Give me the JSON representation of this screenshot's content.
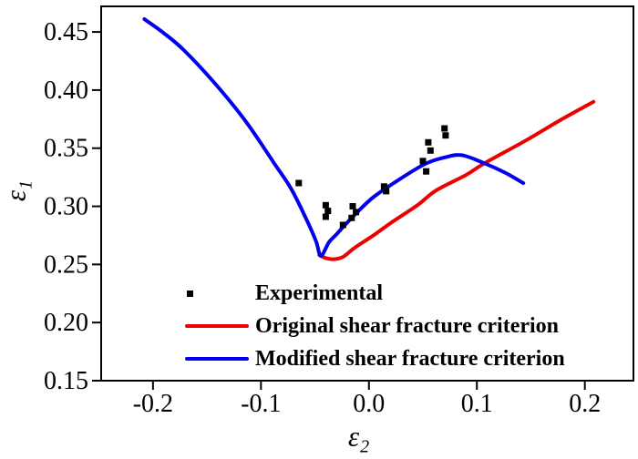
{
  "figure": {
    "background": "#ffffff",
    "frame_color": "#000000"
  },
  "chart_data": {
    "type": "line+scatter",
    "title": "",
    "xlabel_base": "ε",
    "xlabel_sub": "2",
    "ylabel_base": "ε",
    "ylabel_sub": "1",
    "xlim": [
      -0.248,
      0.245
    ],
    "ylim": [
      0.15,
      0.472
    ],
    "grid": false,
    "legend_position": "inside-bottom-right",
    "x_ticks": {
      "values": [
        -0.2,
        -0.1,
        0.0,
        0.1,
        0.2
      ],
      "labels": [
        "-0.2",
        "-0.1",
        "0.0",
        "0.1",
        "0.2"
      ]
    },
    "y_ticks": {
      "values": [
        0.15,
        0.2,
        0.25,
        0.3,
        0.35,
        0.4,
        0.45
      ],
      "labels": [
        "0.15",
        "0.20",
        "0.25",
        "0.30",
        "0.35",
        "0.40",
        "0.45"
      ]
    },
    "series": [
      {
        "name": "Experimental",
        "type": "scatter",
        "marker": "square",
        "color": "#000000",
        "points": [
          [
            -0.065,
            0.32
          ],
          [
            -0.04,
            0.301
          ],
          [
            -0.038,
            0.296
          ],
          [
            -0.04,
            0.291
          ],
          [
            -0.024,
            0.284
          ],
          [
            -0.015,
            0.3
          ],
          [
            -0.012,
            0.295
          ],
          [
            -0.016,
            0.29
          ],
          [
            0.014,
            0.317
          ],
          [
            0.016,
            0.313
          ],
          [
            0.05,
            0.339
          ],
          [
            0.053,
            0.33
          ],
          [
            0.055,
            0.355
          ],
          [
            0.057,
            0.348
          ],
          [
            0.07,
            0.367
          ],
          [
            0.071,
            0.361
          ]
        ]
      },
      {
        "name": "Original shear fracture criterion",
        "type": "line",
        "color": "#ee0000",
        "points": [
          [
            -0.046,
            0.258
          ],
          [
            -0.04,
            0.2555
          ],
          [
            -0.033,
            0.2545
          ],
          [
            -0.024,
            0.2565
          ],
          [
            -0.013,
            0.2645
          ],
          [
            0.005,
            0.2755
          ],
          [
            0.02,
            0.2855
          ],
          [
            0.045,
            0.301
          ],
          [
            0.062,
            0.3135
          ],
          [
            0.09,
            0.327
          ],
          [
            0.107,
            0.337
          ],
          [
            0.146,
            0.357
          ],
          [
            0.177,
            0.374
          ],
          [
            0.208,
            0.39
          ]
        ]
      },
      {
        "name": "Modified shear fracture criterion",
        "type": "line",
        "color": "#0000ee",
        "points": [
          [
            -0.208,
            0.461
          ],
          [
            -0.19,
            0.449
          ],
          [
            -0.171,
            0.434
          ],
          [
            -0.142,
            0.405
          ],
          [
            -0.114,
            0.373
          ],
          [
            -0.087,
            0.336
          ],
          [
            -0.072,
            0.315
          ],
          [
            -0.058,
            0.289
          ],
          [
            -0.049,
            0.27
          ],
          [
            -0.0445,
            0.2575
          ],
          [
            -0.037,
            0.269
          ],
          [
            -0.03,
            0.276
          ],
          [
            -0.016,
            0.29
          ],
          [
            0.003,
            0.307
          ],
          [
            0.023,
            0.32
          ],
          [
            0.051,
            0.336
          ],
          [
            0.07,
            0.342
          ],
          [
            0.086,
            0.344
          ],
          [
            0.107,
            0.337
          ],
          [
            0.126,
            0.329
          ],
          [
            0.143,
            0.32
          ]
        ]
      }
    ]
  }
}
